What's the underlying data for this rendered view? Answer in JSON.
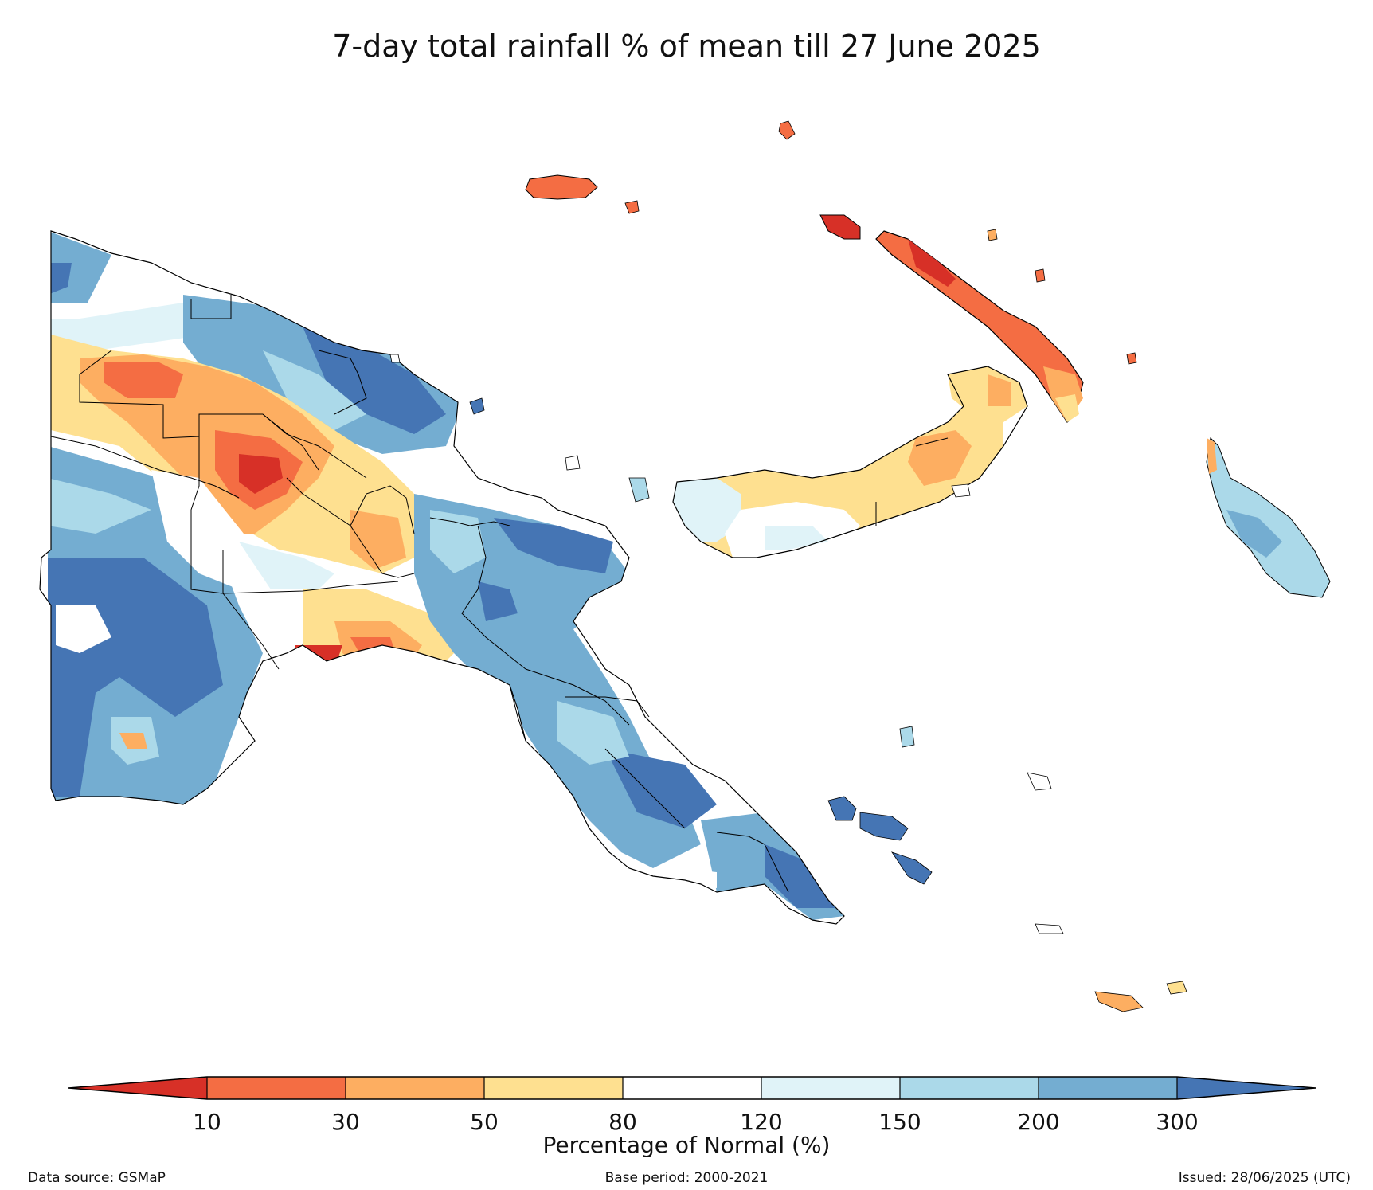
{
  "title": "7-day total rainfall % of mean till 27 June 2025",
  "colorbar": {
    "label": "Percentage of Normal (%)",
    "ticks": [
      "10",
      "30",
      "50",
      "80",
      "120",
      "150",
      "200",
      "300"
    ],
    "colors": [
      "#d73027",
      "#f46d43",
      "#fdae61",
      "#fee090",
      "#ffffff",
      "#e0f3f8",
      "#abd9e9",
      "#74add1",
      "#4575b4"
    ]
  },
  "footer": {
    "source": "Data source: GSMaP",
    "base_period": "Base period: 2000-2021",
    "issued": "Issued: 28/06/2025 (UTC)"
  }
}
